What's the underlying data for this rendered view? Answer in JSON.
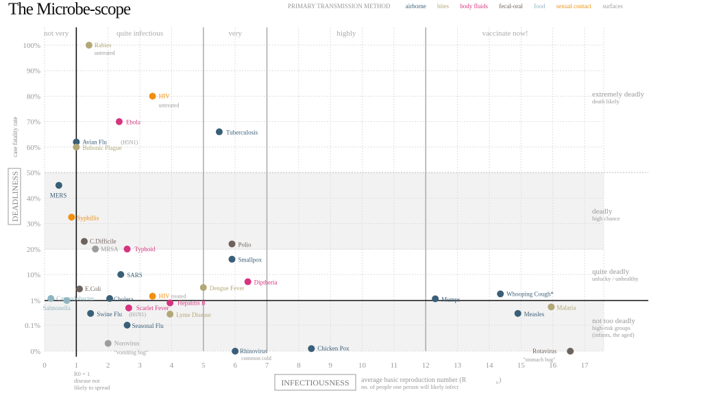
{
  "title": "The Microbe-scope",
  "legend": {
    "title": "PRIMARY TRANSMISSION METHOD",
    "items": [
      {
        "name": "airborne",
        "color": "#3a5f78"
      },
      {
        "name": "bites",
        "color": "#b3a777"
      },
      {
        "name": "body fluids",
        "color": "#d6347f"
      },
      {
        "name": "fecal-oral",
        "color": "#6e625c"
      },
      {
        "name": "food",
        "color": "#8fb5c0"
      },
      {
        "name": "sexual contact",
        "color": "#f0900f"
      },
      {
        "name": "surfaces",
        "color": "#9c9c9c"
      }
    ]
  },
  "chart_data": {
    "type": "scatter",
    "title": "The Microbe-scope",
    "xlabel": "INFECTIOUSNESS",
    "xlabel_desc": "average basic reproduction number (R",
    "xlabel_sub": "0",
    "xlabel_desc_end": ")",
    "xlabel_desc2": "no. of people one person will likely infect",
    "ylabel": "DEADLINESS",
    "ylabel_desc": "case fatality rate",
    "xlim": [
      0,
      17
    ],
    "x_ticks": [
      "0",
      "1",
      "2",
      "3",
      "4",
      "5",
      "6",
      "7",
      "8",
      "9",
      "10",
      "11",
      "12",
      "13",
      "14",
      "15",
      "16",
      "17"
    ],
    "y_ticks": [
      "0%",
      "0.1%",
      "1%",
      "10%",
      "20%",
      "30%",
      "40%",
      "50%",
      "60%",
      "70%",
      "80%",
      "90%",
      "100%"
    ],
    "y_scale_note": "piecewise: 0% / 0.1% / 1% log-ish bottom section, linear 1%-100%",
    "r0_note": [
      "R0 = 1",
      "disease not",
      "likely to spread"
    ],
    "infectiousness_bands": [
      {
        "label": "not very",
        "from": 0,
        "to": 1
      },
      {
        "label": "quite infectious",
        "from": 1,
        "to": 5
      },
      {
        "label": "very",
        "from": 5,
        "to": 7
      },
      {
        "label": "highly",
        "from": 7,
        "to": 12
      },
      {
        "label": "vaccinate now!",
        "from": 12,
        "to": 17
      }
    ],
    "deadliness_zones": [
      {
        "title": "extremely deadly",
        "sub": [
          "death likely"
        ]
      },
      {
        "title": "deadly",
        "sub": [
          "high chance"
        ]
      },
      {
        "title": "quite deadly",
        "sub": [
          "unlucky  / unhealthy"
        ]
      },
      {
        "title": "not too deadly",
        "sub": [
          "high-risk groups",
          "(infants, the aged)"
        ]
      }
    ],
    "points": [
      {
        "name": "Rabies",
        "sub": "untreated",
        "x": 1.4,
        "y": 100,
        "method": "bites"
      },
      {
        "name": "HIV",
        "sub": "untreated",
        "x": 3.4,
        "y": 80,
        "method": "sexual contact"
      },
      {
        "name": "Ebola",
        "sub": "",
        "x": 2.35,
        "y": 70,
        "method": "body fluids"
      },
      {
        "name": "Tuberculosis",
        "sub": "",
        "x": 5.5,
        "y": 66,
        "method": "airborne"
      },
      {
        "name": "Avian Flu",
        "sub": "(H5N1)",
        "x": 1.0,
        "y": 62,
        "method": "airborne"
      },
      {
        "name": "Bubonic Plague",
        "sub": "",
        "x": 1.0,
        "y": 60,
        "method": "bites"
      },
      {
        "name": "MERS",
        "sub": "",
        "x": 0.45,
        "y": 45,
        "method": "airborne"
      },
      {
        "name": "Syphillis",
        "sub": "",
        "x": 0.85,
        "y": 32.5,
        "method": "sexual contact"
      },
      {
        "name": "C.Difficile",
        "sub": "",
        "x": 1.25,
        "y": 23,
        "method": "fecal-oral"
      },
      {
        "name": "MRSA",
        "sub": "",
        "x": 1.6,
        "y": 20,
        "method": "surfaces"
      },
      {
        "name": "Typhoid",
        "sub": "",
        "x": 2.6,
        "y": 20,
        "method": "body fluids"
      },
      {
        "name": "Polio",
        "sub": "",
        "x": 5.9,
        "y": 22,
        "method": "fecal-oral"
      },
      {
        "name": "Smallpox",
        "sub": "",
        "x": 5.9,
        "y": 16,
        "method": "airborne"
      },
      {
        "name": "SARS",
        "sub": "",
        "x": 2.4,
        "y": 10,
        "method": "airborne"
      },
      {
        "name": "Diptheria",
        "sub": "",
        "x": 6.4,
        "y": 7.5,
        "method": "body fluids"
      },
      {
        "name": "Dengue Fever",
        "sub": "",
        "x": 5.0,
        "y": 5.5,
        "method": "bites"
      },
      {
        "name": "E.Coli",
        "sub": "",
        "x": 1.1,
        "y": 5,
        "method": "fecal-oral"
      },
      {
        "name": "HIV",
        "sub": "treated",
        "x": 3.4,
        "y": 2.5,
        "method": "sexual contact"
      },
      {
        "name": "Campylobacter",
        "sub": "",
        "x": 0.2,
        "y": 1.7,
        "method": "food"
      },
      {
        "name": "Cholera",
        "sub": "",
        "x": 2.05,
        "y": 1.7,
        "method": "airborne"
      },
      {
        "name": "Salmonella",
        "sub": "",
        "x": 0.7,
        "y": 1.0,
        "method": "food"
      },
      {
        "name": "Mumps",
        "sub": "",
        "x": 12.3,
        "y": 1.6,
        "method": "airborne"
      },
      {
        "name": "Whooping Cough*",
        "sub": "",
        "x": 14.35,
        "y": 3.3,
        "method": "airborne"
      },
      {
        "name": "Hepatitis B",
        "sub": "",
        "x": 3.95,
        "y": 0.8,
        "method": "body fluids"
      },
      {
        "name": "Scarlet Fever",
        "sub": "",
        "x": 2.65,
        "y": 0.5,
        "method": "body fluids"
      },
      {
        "name": "Swine Flu",
        "sub": "(H1N1)",
        "x": 1.45,
        "y": 0.3,
        "method": "airborne"
      },
      {
        "name": "Lyme Disease",
        "sub": "",
        "x": 3.95,
        "y": 0.28,
        "method": "bites"
      },
      {
        "name": "Seasonal Flu",
        "sub": "",
        "x": 2.6,
        "y": 0.1,
        "method": "airborne"
      },
      {
        "name": "Malaria",
        "sub": "",
        "x": 15.95,
        "y": 0.55,
        "method": "bites"
      },
      {
        "name": "Measles",
        "sub": "",
        "x": 14.9,
        "y": 0.3,
        "method": "airborne"
      },
      {
        "name": "Norovirus",
        "sub": "\"vomiting bug\"",
        "x": 2.0,
        "y": 0.03,
        "method": "surfaces"
      },
      {
        "name": "Rhinovirus",
        "sub": "common cold",
        "x": 6.0,
        "y": 0.0,
        "method": "airborne"
      },
      {
        "name": "Chicken Pox",
        "sub": "",
        "x": 8.4,
        "y": 0.01,
        "method": "airborne"
      },
      {
        "name": "Rotavirus",
        "sub": "\"stomach bug\"",
        "x": 16.55,
        "y": 0.0,
        "method": "fecal-oral"
      }
    ]
  }
}
